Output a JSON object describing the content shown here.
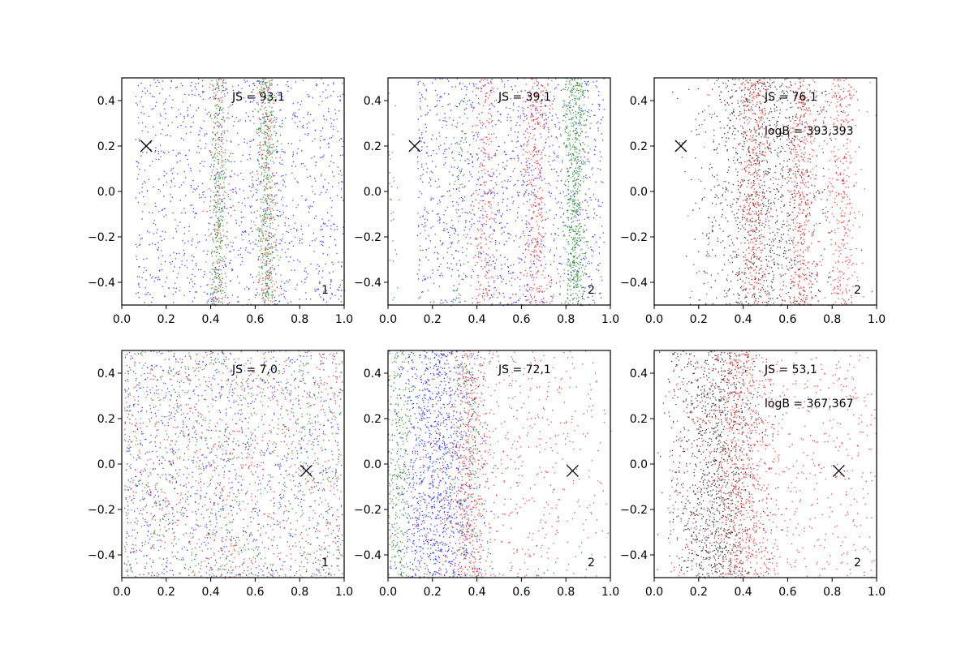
{
  "chart_data": [
    {
      "type": "scatter",
      "panel": "top-left",
      "js_label": "JS = 93,1",
      "logb_label": "",
      "corner_label": "1",
      "marker": {
        "x": 0.11,
        "y": 0.2,
        "symbol": "x"
      },
      "xlim": [
        0.0,
        1.0
      ],
      "ylim": [
        -0.5,
        0.5
      ],
      "xticks": [
        "0.0",
        "0.2",
        "0.4",
        "0.6",
        "0.8",
        "1.0"
      ],
      "yticks": [
        "-0.4",
        "-0.2",
        "0.0",
        "0.2",
        "0.4"
      ],
      "series": [
        {
          "name": "blue",
          "color": "#0000ff",
          "count": 1300,
          "bands": [
            {
              "center": 0.55,
              "width": 0.35,
              "weight": 1
            }
          ]
        },
        {
          "name": "red",
          "color": "#ff0000",
          "count": 350,
          "bands": [
            {
              "center": 0.43,
              "width": 0.02,
              "weight": 0.45
            },
            {
              "center": 0.65,
              "width": 0.025,
              "weight": 0.55
            }
          ]
        },
        {
          "name": "green",
          "color": "#008000",
          "count": 750,
          "bands": [
            {
              "center": 0.43,
              "width": 0.02,
              "weight": 0.4
            },
            {
              "center": 0.65,
              "width": 0.025,
              "weight": 0.6
            }
          ]
        }
      ]
    },
    {
      "type": "scatter",
      "panel": "top-middle",
      "js_label": "JS = 39,1",
      "logb_label": "",
      "corner_label": "2",
      "marker": {
        "x": 0.12,
        "y": 0.2,
        "symbol": "x"
      },
      "xlim": [
        0.0,
        1.0
      ],
      "ylim": [
        -0.5,
        0.5
      ],
      "xticks": [
        "0.0",
        "0.2",
        "0.4",
        "0.6",
        "0.8",
        "1.0"
      ],
      "yticks": [
        "-0.4",
        "-0.2",
        "0.0",
        "0.2",
        "0.4"
      ],
      "series": [
        {
          "name": "blue",
          "color": "#0000ff",
          "count": 1300,
          "bands": [
            {
              "center": 0.55,
              "width": 0.3,
              "weight": 1
            }
          ]
        },
        {
          "name": "red",
          "color": "#ff0000",
          "count": 600,
          "bands": [
            {
              "center": 0.44,
              "width": 0.03,
              "weight": 0.35
            },
            {
              "center": 0.66,
              "width": 0.03,
              "weight": 0.65
            }
          ]
        },
        {
          "name": "green",
          "color": "#008000",
          "count": 750,
          "bands": [
            {
              "center": 0.84,
              "width": 0.025,
              "weight": 0.85
            },
            {
              "center": 0.32,
              "width": 0.02,
              "weight": 0.1
            },
            {
              "center": 0.01,
              "width": 0.015,
              "weight": 0.05
            }
          ]
        }
      ]
    },
    {
      "type": "scatter",
      "panel": "top-right",
      "js_label": "JS = 76,1",
      "logb_label": "logB = 393,393",
      "corner_label": "2",
      "marker": {
        "x": 0.12,
        "y": 0.2,
        "symbol": "x"
      },
      "xlim": [
        0.0,
        1.0
      ],
      "ylim": [
        -0.5,
        0.5
      ],
      "xticks": [
        "0.0",
        "0.2",
        "0.4",
        "0.6",
        "0.8",
        "1.0"
      ],
      "yticks": [
        "-0.4",
        "-0.2",
        "0.0",
        "0.2",
        "0.4"
      ],
      "series": [
        {
          "name": "black",
          "color": "#000000",
          "count": 1200,
          "bands": [
            {
              "center": 0.5,
              "width": 0.15,
              "weight": 1
            }
          ]
        },
        {
          "name": "red",
          "color": "#ff0000",
          "count": 1300,
          "bands": [
            {
              "center": 0.45,
              "width": 0.035,
              "weight": 0.3
            },
            {
              "center": 0.66,
              "width": 0.035,
              "weight": 0.35
            },
            {
              "center": 0.84,
              "width": 0.03,
              "weight": 0.25
            },
            {
              "center": 0.55,
              "width": 0.3,
              "weight": 0.1
            }
          ]
        }
      ]
    },
    {
      "type": "scatter",
      "panel": "bottom-left",
      "js_label": "JS = 7,0",
      "logb_label": "",
      "corner_label": "1",
      "marker": {
        "x": 0.83,
        "y": -0.03,
        "symbol": "x"
      },
      "xlim": [
        0.0,
        1.0
      ],
      "ylim": [
        -0.5,
        0.5
      ],
      "xticks": [
        "0.0",
        "0.2",
        "0.4",
        "0.6",
        "0.8",
        "1.0"
      ],
      "yticks": [
        "-0.4",
        "-0.2",
        "0.0",
        "0.2",
        "0.4"
      ],
      "series": [
        {
          "name": "blue",
          "color": "#0000ff",
          "count": 1100,
          "bands": [
            {
              "center": 0.5,
              "width": 0.35,
              "weight": 1
            }
          ]
        },
        {
          "name": "red",
          "color": "#ff0000",
          "count": 800,
          "bands": [
            {
              "center": 0.5,
              "width": 0.35,
              "weight": 1
            }
          ]
        },
        {
          "name": "green",
          "color": "#008000",
          "count": 800,
          "bands": [
            {
              "center": 0.5,
              "width": 0.35,
              "weight": 1
            }
          ]
        }
      ]
    },
    {
      "type": "scatter",
      "panel": "bottom-middle",
      "js_label": "JS = 72,1",
      "logb_label": "",
      "corner_label": "2",
      "marker": {
        "x": 0.83,
        "y": -0.03,
        "symbol": "x"
      },
      "xlim": [
        0.0,
        1.0
      ],
      "ylim": [
        -0.5,
        0.5
      ],
      "xticks": [
        "0.0",
        "0.2",
        "0.4",
        "0.6",
        "0.8",
        "1.0"
      ],
      "yticks": [
        "-0.4",
        "-0.2",
        "0.0",
        "0.2",
        "0.4"
      ],
      "series": [
        {
          "name": "blue",
          "color": "#0000ff",
          "count": 1300,
          "bands": [
            {
              "center": 0.22,
              "width": 0.1,
              "weight": 1
            }
          ]
        },
        {
          "name": "red",
          "color": "#ff0000",
          "count": 900,
          "bands": [
            {
              "center": 0.36,
              "width": 0.04,
              "weight": 0.45
            },
            {
              "center": 0.6,
              "width": 0.25,
              "weight": 0.55
            }
          ]
        },
        {
          "name": "green",
          "color": "#008000",
          "count": 600,
          "bands": [
            {
              "center": 0.04,
              "width": 0.03,
              "weight": 0.45
            },
            {
              "center": 0.36,
              "width": 0.05,
              "weight": 0.3
            },
            {
              "center": 0.5,
              "width": 0.3,
              "weight": 0.25
            }
          ]
        }
      ]
    },
    {
      "type": "scatter",
      "panel": "bottom-right",
      "js_label": "JS = 53,1",
      "logb_label": "logB = 367,367",
      "corner_label": "2",
      "marker": {
        "x": 0.83,
        "y": -0.03,
        "symbol": "x"
      },
      "xlim": [
        0.0,
        1.0
      ],
      "ylim": [
        -0.5,
        0.5
      ],
      "xticks": [
        "0.0",
        "0.2",
        "0.4",
        "0.6",
        "0.8",
        "1.0"
      ],
      "yticks": [
        "-0.4",
        "-0.2",
        "0.0",
        "0.2",
        "0.4"
      ],
      "series": [
        {
          "name": "black",
          "color": "#000000",
          "count": 1200,
          "bands": [
            {
              "center": 0.28,
              "width": 0.1,
              "weight": 1
            }
          ]
        },
        {
          "name": "red",
          "color": "#ff0000",
          "count": 1300,
          "bands": [
            {
              "center": 0.36,
              "width": 0.05,
              "weight": 0.25
            },
            {
              "center": 0.45,
              "width": 0.05,
              "weight": 0.2
            },
            {
              "center": 0.55,
              "width": 0.35,
              "weight": 0.55
            }
          ]
        }
      ]
    }
  ]
}
